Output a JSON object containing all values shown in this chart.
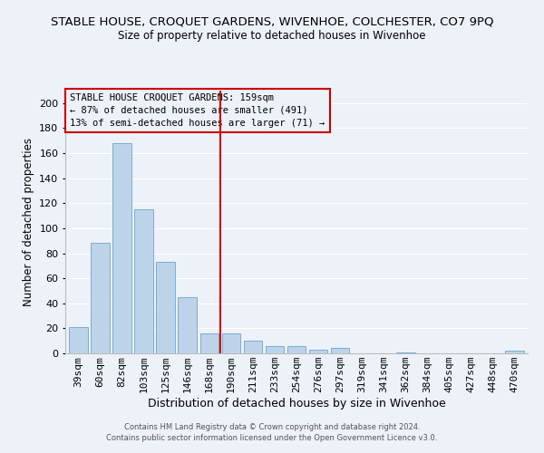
{
  "title": "STABLE HOUSE, CROQUET GARDENS, WIVENHOE, COLCHESTER, CO7 9PQ",
  "subtitle": "Size of property relative to detached houses in Wivenhoe",
  "xlabel": "Distribution of detached houses by size in Wivenhoe",
  "ylabel": "Number of detached properties",
  "bar_labels": [
    "39sqm",
    "60sqm",
    "82sqm",
    "103sqm",
    "125sqm",
    "146sqm",
    "168sqm",
    "190sqm",
    "211sqm",
    "233sqm",
    "254sqm",
    "276sqm",
    "297sqm",
    "319sqm",
    "341sqm",
    "362sqm",
    "384sqm",
    "405sqm",
    "427sqm",
    "448sqm",
    "470sqm"
  ],
  "bar_values": [
    21,
    88,
    168,
    115,
    73,
    45,
    16,
    16,
    10,
    6,
    6,
    3,
    4,
    0,
    0,
    1,
    0,
    0,
    0,
    0,
    2
  ],
  "bar_color": "#bdd3ea",
  "bar_edge_color": "#7aadd4",
  "ylim": [
    0,
    210
  ],
  "yticks": [
    0,
    20,
    40,
    60,
    80,
    100,
    120,
    140,
    160,
    180,
    200
  ],
  "vline_color": "#cc0000",
  "annotation_box_text": "STABLE HOUSE CROQUET GARDENS: 159sqm\n← 87% of detached houses are smaller (491)\n13% of semi-detached houses are larger (71) →",
  "annotation_box_color": "#cc0000",
  "footer_line1": "Contains HM Land Registry data © Crown copyright and database right 2024.",
  "footer_line2": "Contains public sector information licensed under the Open Government Licence v3.0.",
  "background_color": "#edf1f8",
  "grid_color": "#ffffff"
}
